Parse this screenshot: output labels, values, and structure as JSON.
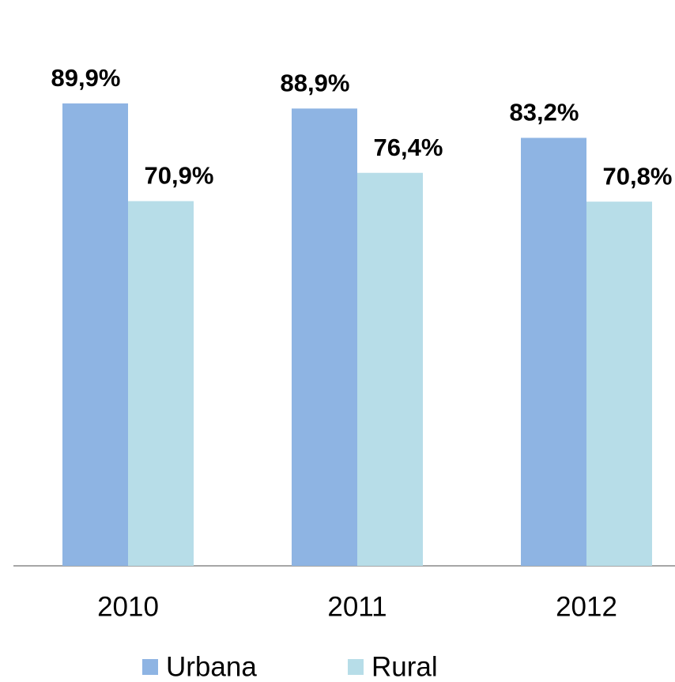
{
  "chart_data": {
    "type": "bar",
    "categories": [
      "2010",
      "2011",
      "2012"
    ],
    "series": [
      {
        "name": "Urbana",
        "color": "#8eb4e3",
        "values": [
          89.9,
          88.9,
          83.2
        ],
        "value_labels": [
          "89,9%",
          "88,9%",
          "83,2%"
        ]
      },
      {
        "name": "Rural",
        "color": "#b7dde8",
        "values": [
          70.9,
          76.4,
          70.8
        ],
        "value_labels": [
          "70,9%",
          "76,4%",
          "70,8%"
        ]
      }
    ],
    "ylim": [
      0,
      110
    ],
    "legend": "bottom"
  }
}
